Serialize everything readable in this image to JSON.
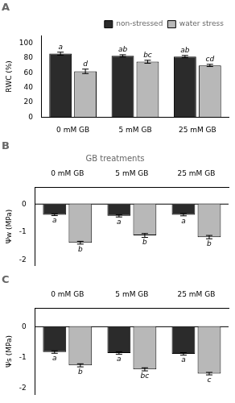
{
  "chart_data": [
    {
      "type": "bar",
      "title": "A",
      "ylabel": "RWC (%)",
      "categories": [
        "0 mM GB",
        "5 mM GB",
        "25 mM GB"
      ],
      "series": [
        {
          "name": "non-stressed",
          "color": "#2b2b2b",
          "values": [
            86,
            83,
            82
          ],
          "errors": [
            2.0,
            1.5,
            1.5
          ],
          "labels": [
            "a",
            "ab",
            "ab"
          ]
        },
        {
          "name": "water stress",
          "color": "#b8b8b8",
          "values": [
            62,
            75,
            70
          ],
          "errors": [
            3.0,
            2.0,
            1.5
          ],
          "labels": [
            "d",
            "bc",
            "cd"
          ]
        }
      ],
      "ylim": [
        0,
        110
      ],
      "yticks": [
        0,
        20,
        40,
        60,
        80,
        100
      ],
      "grid": false,
      "legend": "upper right"
    },
    {
      "type": "bar",
      "title": "B",
      "subtitle": "GB treatments",
      "ylabel": "Ψw (MPa)",
      "categories": [
        "0 mM GB",
        "5 mM GB",
        "25 mM GB"
      ],
      "series": [
        {
          "name": "non-stressed",
          "color": "#2b2b2b",
          "values": [
            -0.38,
            -0.42,
            -0.38
          ],
          "errors": [
            0.03,
            0.04,
            0.04
          ],
          "labels": [
            "a",
            "a",
            "a"
          ]
        },
        {
          "name": "water stress",
          "color": "#b8b8b8",
          "values": [
            -1.38,
            -1.12,
            -1.18
          ],
          "errors": [
            0.05,
            0.07,
            0.06
          ],
          "labels": [
            "b",
            "b",
            "b"
          ]
        }
      ],
      "ylim": [
        -2.2,
        0.6
      ],
      "yticks": [
        0,
        -1,
        -2
      ],
      "grid": false,
      "legend": false
    },
    {
      "type": "bar",
      "title": "C",
      "ylabel": "Ψs (MPa)",
      "categories": [
        "0 mM GB",
        "5 mM GB",
        "25 mM GB"
      ],
      "series": [
        {
          "name": "non-stressed",
          "color": "#2b2b2b",
          "values": [
            -0.82,
            -0.85,
            -0.88
          ],
          "errors": [
            0.04,
            0.04,
            0.04
          ],
          "labels": [
            "a",
            "a",
            "a"
          ]
        },
        {
          "name": "water stress",
          "color": "#b8b8b8",
          "values": [
            -1.25,
            -1.38,
            -1.52
          ],
          "errors": [
            0.05,
            0.05,
            0.04
          ],
          "labels": [
            "b",
            "bc",
            "c"
          ]
        }
      ],
      "ylim": [
        -2.2,
        0.6
      ],
      "yticks": [
        0,
        -1,
        -2
      ],
      "grid": false,
      "legend": false
    }
  ]
}
